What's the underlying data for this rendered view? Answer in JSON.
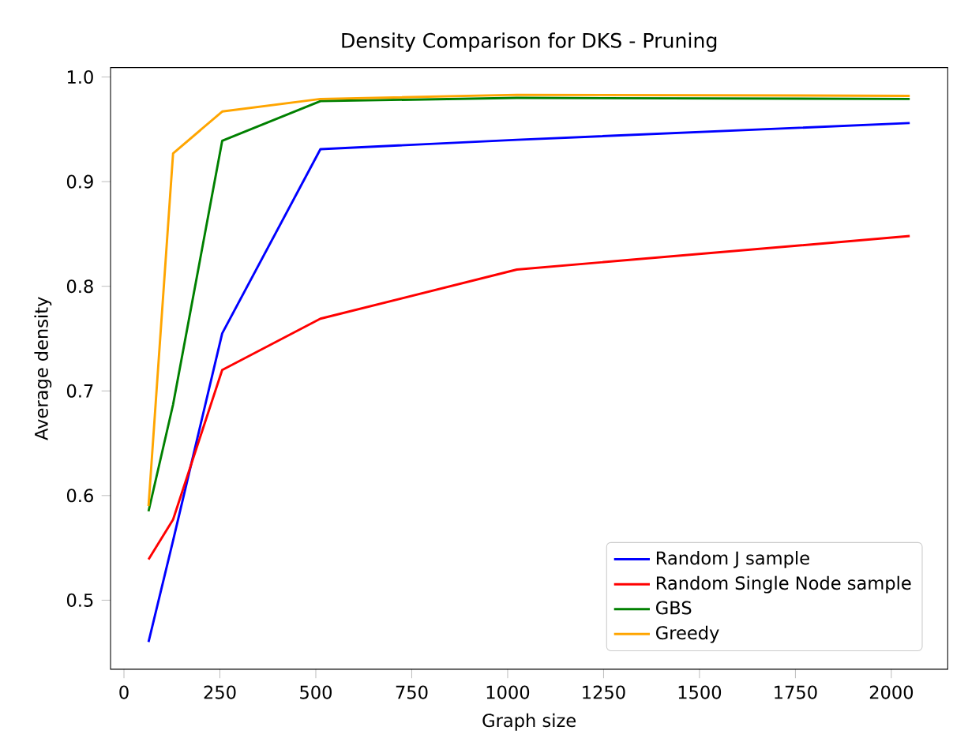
{
  "chart_data": {
    "type": "line",
    "title": "Density Comparison for DKS - Pruning",
    "xlabel": "Graph size",
    "ylabel": "Average density",
    "x": [
      64,
      128,
      256,
      512,
      1024,
      2048
    ],
    "series": [
      {
        "name": "Random J sample",
        "color": "#0000ff",
        "values": [
          0.46,
          0.557,
          0.755,
          0.931,
          0.94,
          0.956
        ]
      },
      {
        "name": "Random Single Node sample",
        "color": "#ff0000",
        "values": [
          0.539,
          0.577,
          0.72,
          0.769,
          0.816,
          0.848
        ]
      },
      {
        "name": "GBS",
        "color": "#008000",
        "values": [
          0.585,
          0.687,
          0.939,
          0.977,
          0.98,
          0.979
        ]
      },
      {
        "name": "Greedy",
        "color": "#ffa500",
        "values": [
          0.59,
          0.927,
          0.967,
          0.979,
          0.983,
          0.982
        ]
      }
    ],
    "xlim": [
      -35,
      2147
    ],
    "ylim": [
      0.434,
      1.009
    ],
    "xticks": [
      0,
      250,
      500,
      750,
      1000,
      1250,
      1500,
      1750,
      2000
    ],
    "yticks": [
      0.5,
      0.6,
      0.7,
      0.8,
      0.9,
      {
        "value": 1.0,
        "label": "1.0"
      }
    ],
    "grid": false,
    "legend": "bottom right",
    "marker": "none",
    "line_style": "solid"
  }
}
